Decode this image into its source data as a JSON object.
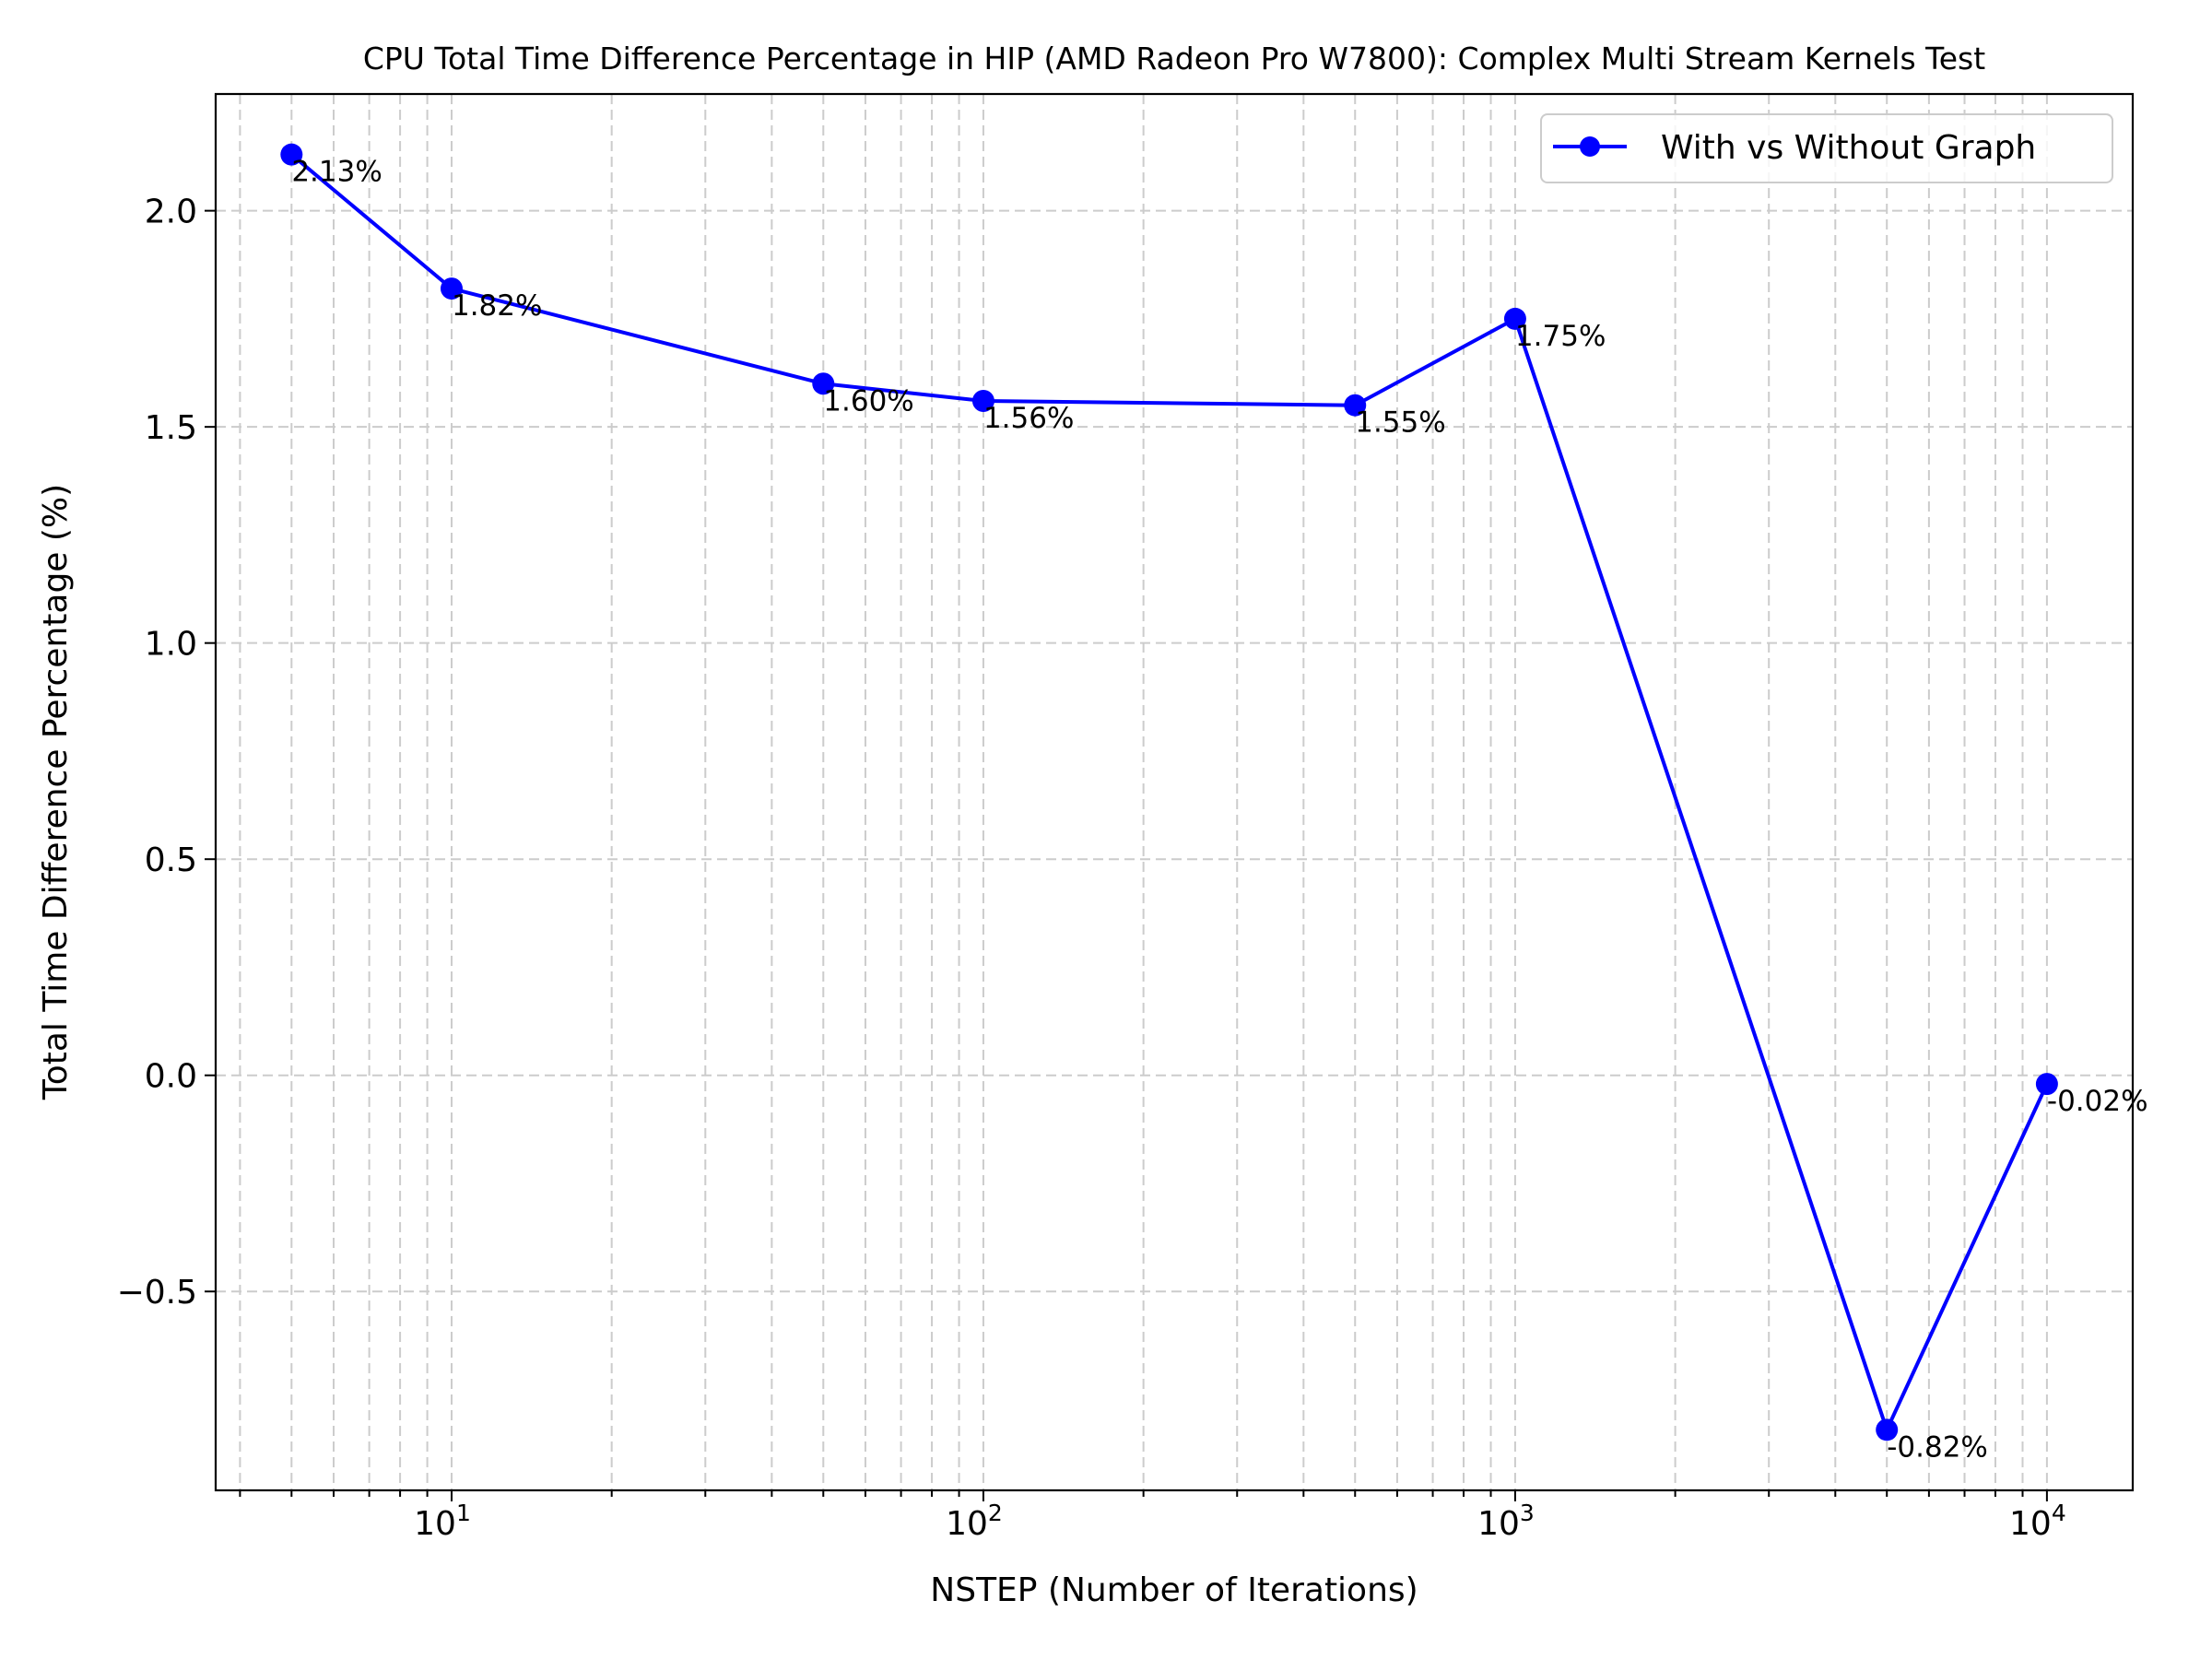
{
  "chart_data": {
    "type": "line",
    "title": "CPU Total Time Difference Percentage in HIP (AMD Radeon Pro W7800): Complex Multi Stream Kernels Test",
    "xlabel": "NSTEP (Number of Iterations)",
    "ylabel": "Total Time Difference Percentage (%)",
    "x_scale": "log",
    "xlim": [
      3.6,
      14500
    ],
    "ylim": [
      -0.96,
      2.27
    ],
    "x_ticks": [
      {
        "value": 10,
        "base": "10",
        "exp": "1"
      },
      {
        "value": 100,
        "base": "10",
        "exp": "2"
      },
      {
        "value": 1000,
        "base": "10",
        "exp": "3"
      },
      {
        "value": 10000,
        "base": "10",
        "exp": "4"
      }
    ],
    "y_ticks": [
      {
        "value": 2.0,
        "label": "2.0"
      },
      {
        "value": 1.5,
        "label": "1.5"
      },
      {
        "value": 1.0,
        "label": "1.0"
      },
      {
        "value": 0.5,
        "label": "0.5"
      },
      {
        "value": 0.0,
        "label": "0.0"
      },
      {
        "value": -0.5,
        "label": "−0.5"
      }
    ],
    "grid": true,
    "legend_position": "top-right",
    "series": [
      {
        "name": "With vs Without Graph",
        "color": "#0000ff",
        "marker": "circle",
        "x": [
          5,
          10,
          50,
          100,
          500,
          1000,
          5000,
          10000
        ],
        "y": [
          2.13,
          1.82,
          1.6,
          1.56,
          1.55,
          1.75,
          -0.82,
          -0.02
        ],
        "labels": [
          "2.13%",
          "1.82%",
          "1.60%",
          "1.56%",
          "1.55%",
          "1.75%",
          "-0.82%",
          "-0.02%"
        ]
      }
    ]
  }
}
